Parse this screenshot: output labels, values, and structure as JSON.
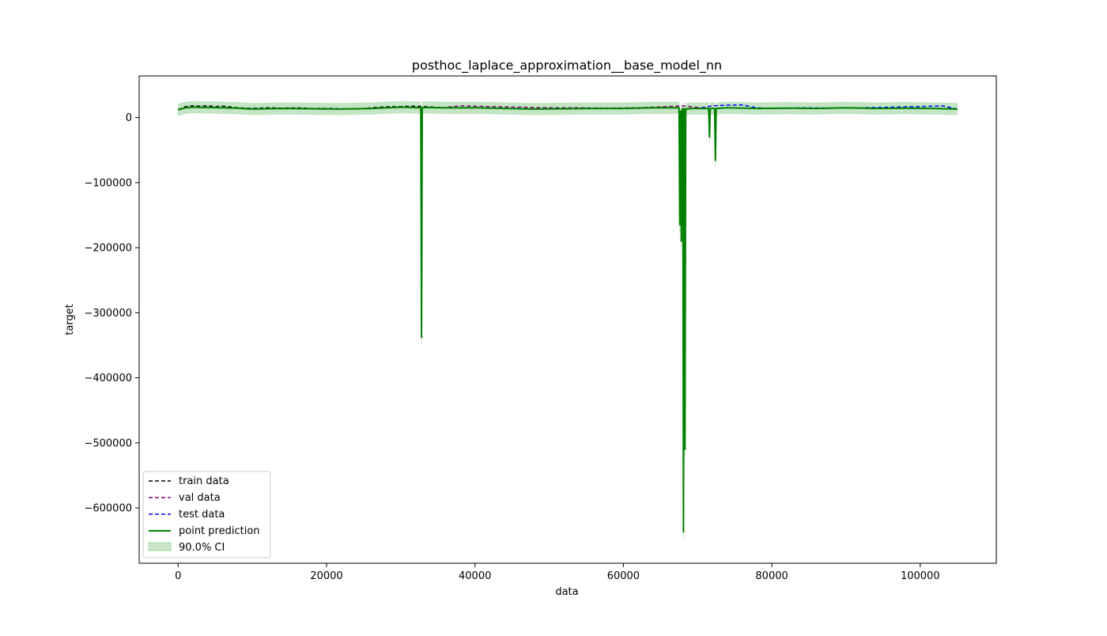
{
  "chart_data": {
    "type": "line",
    "title": "posthoc_laplace_approximation__base_model_nn",
    "xlabel": "data",
    "ylabel": "target",
    "xlim": [
      -5250,
      110250
    ],
    "ylim": [
      -685000,
      64000
    ],
    "x_ticks": [
      0,
      20000,
      40000,
      60000,
      80000,
      100000
    ],
    "x_tick_labels": [
      "0",
      "20000",
      "40000",
      "60000",
      "80000",
      "100000"
    ],
    "y_ticks": [
      0,
      -100000,
      -200000,
      -300000,
      -400000,
      -500000,
      -600000
    ],
    "y_tick_labels": [
      "0",
      "−100000",
      "−200000",
      "−300000",
      "−400000",
      "−500000",
      "−600000"
    ],
    "grid": false,
    "legend_position": "lower-left",
    "legend": [
      {
        "label": "train data",
        "style": "dashed",
        "color": "#000000"
      },
      {
        "label": "val data",
        "style": "dashed",
        "color": "#800080"
      },
      {
        "label": "test data",
        "style": "dashed",
        "color": "#0000ff"
      },
      {
        "label": "point prediction",
        "style": "solid",
        "color": "#008000"
      },
      {
        "label": "90.0% CI",
        "style": "band",
        "color": "#2ca02c"
      }
    ],
    "series": [
      {
        "name": "train data",
        "color": "#000000",
        "x": [
          0,
          1000,
          2000,
          3000,
          4000,
          5000,
          6000,
          7000,
          8000,
          10000,
          12000,
          14000,
          16000,
          18000,
          20000,
          22000,
          24000,
          26000,
          28000,
          30000,
          32000,
          34000,
          35500
        ],
        "y": [
          12000,
          17000,
          18000,
          17500,
          18000,
          17000,
          17500,
          16500,
          15000,
          14000,
          15000,
          14500,
          15000,
          14000,
          14000,
          13500,
          13000,
          15000,
          16500,
          17000,
          17500,
          16500,
          15000
        ]
      },
      {
        "name": "val data",
        "color": "#800080",
        "x": [
          35500,
          38000,
          42000,
          46000,
          50000,
          54000,
          58000,
          62000,
          66000,
          68000,
          70500
        ],
        "y": [
          15000,
          18000,
          17000,
          16000,
          15000,
          15000,
          14500,
          15000,
          17000,
          18000,
          15000
        ]
      },
      {
        "name": "test data",
        "color": "#0000ff",
        "x": [
          70500,
          72000,
          74000,
          76000,
          78000,
          80000,
          84000,
          88000,
          92000,
          96000,
          100000,
          103000,
          105000
        ],
        "y": [
          15000,
          18000,
          19000,
          19500,
          15000,
          14000,
          15000,
          14500,
          15000,
          16000,
          17000,
          18000,
          13000
        ]
      },
      {
        "name": "point prediction",
        "color": "#008000",
        "x": [
          0,
          1000,
          2000,
          4000,
          6000,
          8000,
          10000,
          14000,
          18000,
          22000,
          26000,
          30000,
          32700,
          32800,
          32900,
          33000,
          36000,
          40000,
          44000,
          48000,
          52000,
          56000,
          60000,
          64000,
          67000,
          67500,
          67600,
          67700,
          67800,
          67900,
          68000,
          68100,
          68200,
          68300,
          68400,
          68500,
          68600,
          69000,
          71500,
          71600,
          71700,
          72000,
          72300,
          72400,
          72500,
          74000,
          78000,
          82000,
          86000,
          90000,
          94000,
          98000,
          102000,
          105000
        ],
        "y": [
          12000,
          15000,
          16000,
          15500,
          15000,
          14500,
          13000,
          14000,
          13500,
          13000,
          14000,
          16000,
          15000,
          -338000,
          15000,
          15500,
          15000,
          15000,
          14000,
          13000,
          13500,
          14000,
          14000,
          15000,
          15000,
          15000,
          -165000,
          10000,
          -190000,
          12000,
          14000,
          -637000,
          14000,
          -510000,
          12000,
          14000,
          13000,
          14000,
          14000,
          -30000,
          14000,
          14000,
          14000,
          -66000,
          14000,
          15000,
          14000,
          14500,
          14000,
          15000,
          14000,
          14500,
          14000,
          13000
        ]
      }
    ],
    "ci_band": {
      "label": "90.0% CI",
      "color": "#2ca02c",
      "half_width": 9000
    }
  }
}
